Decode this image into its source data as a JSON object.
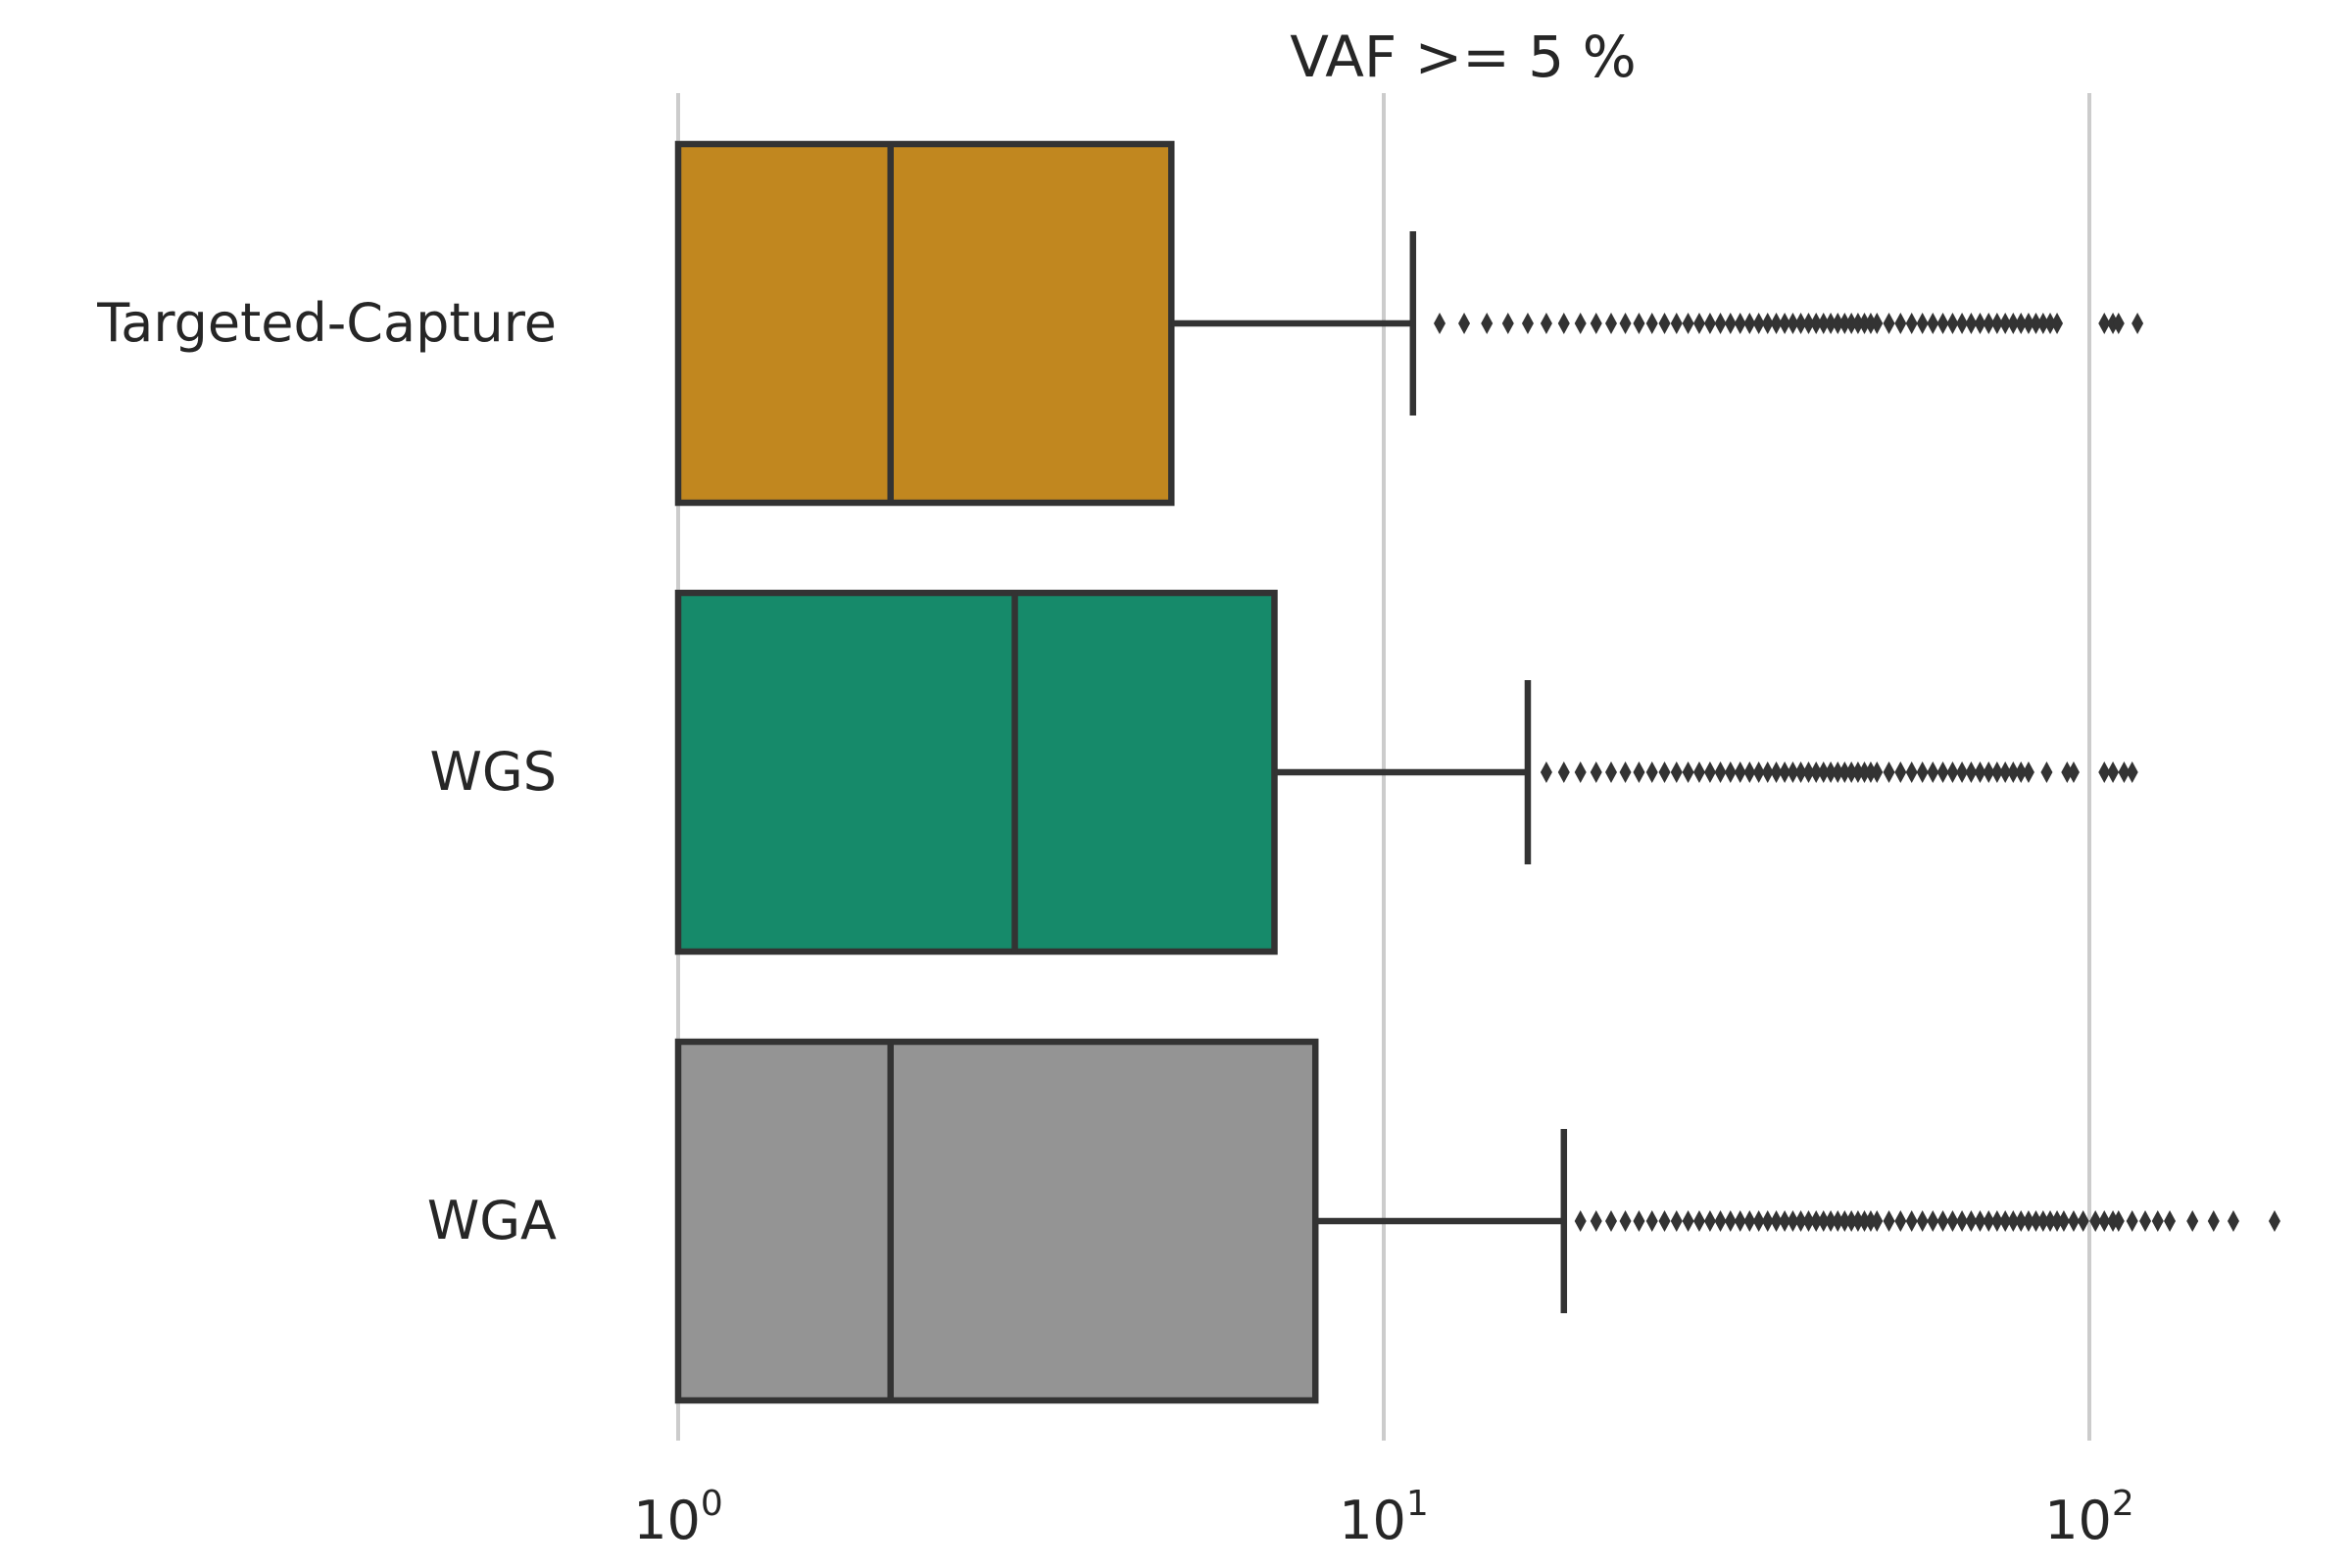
{
  "chart_data": {
    "type": "boxplot",
    "orientation": "horizontal",
    "title": "VAF >= 5 %",
    "xlabel": "",
    "ylabel": "",
    "xscale": "log",
    "xlim": [
      0.95,
      130
    ],
    "x_ticks": [
      {
        "value": 1,
        "base": "10",
        "exp": "0"
      },
      {
        "value": 10,
        "base": "10",
        "exp": "1"
      },
      {
        "value": 100,
        "base": "10",
        "exp": "2"
      }
    ],
    "grid": "vertical",
    "categories": [
      "Targeted-Capture",
      "WGS",
      "WGA"
    ],
    "series": [
      {
        "category": "Targeted-Capture",
        "color": "#c1871f",
        "min": 1,
        "q1": 1,
        "median": 2,
        "q3": 5,
        "whisker_high": 11,
        "outliers": [
          12,
          13,
          14,
          15,
          16,
          17,
          18,
          19,
          20,
          21,
          22,
          23,
          24,
          25,
          26,
          27,
          28,
          29,
          30,
          31,
          32,
          33,
          34,
          35,
          36,
          37,
          38,
          39,
          40,
          41,
          42,
          43,
          44,
          45,
          46,
          47,
          48,
          49,
          50,
          52,
          54,
          56,
          58,
          60,
          62,
          64,
          66,
          68,
          70,
          72,
          74,
          76,
          78,
          80,
          82,
          84,
          86,
          88,
          90,
          105,
          108,
          110,
          117
        ]
      },
      {
        "category": "WGS",
        "color": "#168a6a",
        "min": 1,
        "q1": 1,
        "median": 3,
        "q3": 7,
        "whisker_high": 16,
        "outliers": [
          17,
          18,
          19,
          20,
          21,
          22,
          23,
          24,
          25,
          26,
          27,
          28,
          29,
          30,
          31,
          32,
          33,
          34,
          35,
          36,
          37,
          38,
          39,
          40,
          41,
          42,
          43,
          44,
          45,
          46,
          47,
          48,
          49,
          50,
          52,
          54,
          56,
          58,
          60,
          62,
          64,
          66,
          68,
          70,
          72,
          74,
          76,
          78,
          80,
          82,
          87,
          93,
          95,
          105,
          108,
          112,
          115
        ]
      },
      {
        "category": "WGA",
        "color": "#949494",
        "min": 1,
        "q1": 1,
        "median": 2,
        "q3": 8,
        "whisker_high": 18,
        "outliers": [
          19,
          20,
          21,
          22,
          23,
          24,
          25,
          26,
          27,
          28,
          29,
          30,
          31,
          32,
          33,
          34,
          35,
          36,
          37,
          38,
          39,
          40,
          41,
          42,
          43,
          44,
          45,
          46,
          47,
          48,
          49,
          50,
          52,
          54,
          56,
          58,
          60,
          62,
          64,
          66,
          68,
          70,
          72,
          74,
          76,
          78,
          80,
          82,
          84,
          86,
          88,
          90,
          92,
          95,
          98,
          102,
          105,
          108,
          110,
          115,
          120,
          125,
          130,
          140,
          150,
          160,
          183
        ]
      }
    ]
  }
}
